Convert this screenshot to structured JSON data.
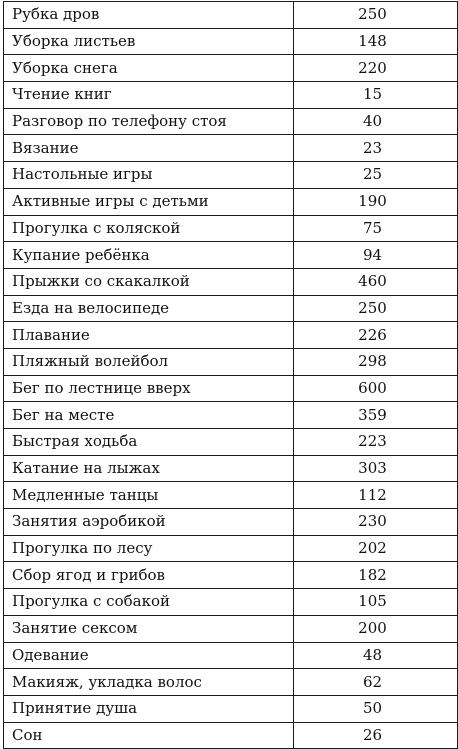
{
  "table": {
    "rows": [
      {
        "activity": "Рубка дров",
        "value": "250"
      },
      {
        "activity": "Уборка листьев",
        "value": "148"
      },
      {
        "activity": "Уборка снега",
        "value": "220"
      },
      {
        "activity": "Чтение книг",
        "value": "15"
      },
      {
        "activity": "Разговор по телефону стоя",
        "value": "40"
      },
      {
        "activity": "Вязание",
        "value": "23"
      },
      {
        "activity": "Настольные игры",
        "value": "25"
      },
      {
        "activity": "Активные игры с детьми",
        "value": "190"
      },
      {
        "activity": "Прогулка с коляской",
        "value": "75"
      },
      {
        "activity": "Купание ребёнка",
        "value": "94"
      },
      {
        "activity": "Прыжки со скакалкой",
        "value": "460"
      },
      {
        "activity": "Езда на велосипеде",
        "value": "250"
      },
      {
        "activity": "Плавание",
        "value": "226"
      },
      {
        "activity": "Пляжный волейбол",
        "value": "298"
      },
      {
        "activity": "Бег по лестнице вверх",
        "value": "600"
      },
      {
        "activity": "Бег на месте",
        "value": "359"
      },
      {
        "activity": "Быстрая ходьба",
        "value": "223"
      },
      {
        "activity": "Катание на лыжах",
        "value": "303"
      },
      {
        "activity": "Медленные танцы",
        "value": "112"
      },
      {
        "activity": "Занятия аэробикой",
        "value": "230"
      },
      {
        "activity": "Прогулка по лесу",
        "value": "202"
      },
      {
        "activity": "Сбор ягод и грибов",
        "value": "182"
      },
      {
        "activity": "Прогулка с собакой",
        "value": "105"
      },
      {
        "activity": "Занятие сексом",
        "value": "200"
      },
      {
        "activity": "Одевание",
        "value": "48"
      },
      {
        "activity": "Макияж, укладка волос",
        "value": "62"
      },
      {
        "activity": "Принятие душа",
        "value": "50"
      },
      {
        "activity": "Сон",
        "value": "26"
      }
    ]
  }
}
